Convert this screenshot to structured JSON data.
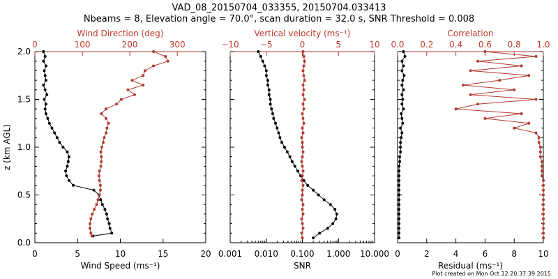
{
  "header": {
    "line1": "VAD_08_20150704_033355, 20150704.033413",
    "line2": "Nbeams = 8, Elevation angle = 70.0°, scan duration = 32.0 s, SNR Threshold = 0.008"
  },
  "footer": "Plot created on Mon Oct 12 20:37:39 2015",
  "colors": {
    "primary": "#000000",
    "secondary": "#b03a2e"
  },
  "chart_data": [
    {
      "type": "line",
      "panel": "wind",
      "ylabel": "z (km AGL)",
      "ylim": [
        0,
        2
      ],
      "yticks": [
        "0.0",
        "0.5",
        "1.0",
        "1.5",
        "2.0"
      ],
      "bottom_axis": {
        "label": "Wind Speed (ms⁻¹)",
        "lim": [
          0,
          20
        ],
        "ticks": [
          "0",
          "5",
          "10",
          "15",
          "20"
        ]
      },
      "top_axis": {
        "label": "Wind Direction (deg)",
        "lim": [
          0,
          360
        ],
        "ticks": [
          "0",
          "100",
          "200",
          "300"
        ]
      },
      "series": [
        {
          "name": "Wind Speed",
          "axis": "bottom",
          "color": "black",
          "z": [
            0.07,
            0.1,
            0.15,
            0.2,
            0.25,
            0.3,
            0.35,
            0.4,
            0.45,
            0.5,
            0.55,
            0.6,
            0.65,
            0.7,
            0.75,
            0.8,
            0.85,
            0.9,
            0.95,
            1.0,
            1.05,
            1.1,
            1.15,
            1.2,
            1.25,
            1.3,
            1.35,
            1.4,
            1.45,
            1.5,
            1.55,
            1.6,
            1.65,
            1.7,
            1.75,
            1.8,
            1.85,
            1.9,
            1.95,
            2.0
          ],
          "values": [
            6.8,
            9.0,
            8.8,
            8.7,
            8.5,
            8.4,
            8.2,
            7.9,
            7.7,
            7.5,
            6.9,
            4.5,
            4.0,
            3.7,
            3.6,
            3.8,
            3.9,
            4.0,
            3.8,
            3.3,
            2.9,
            2.6,
            2.3,
            2.0,
            1.7,
            1.5,
            1.3,
            1.2,
            1.3,
            1.1,
            1.4,
            1.2,
            1.0,
            1.3,
            1.2,
            1.1,
            1.3,
            1.0,
            1.2,
            1.0
          ]
        },
        {
          "name": "Wind Direction",
          "axis": "top",
          "color": "red",
          "z": [
            0.07,
            0.1,
            0.15,
            0.2,
            0.25,
            0.3,
            0.35,
            0.4,
            0.45,
            0.5,
            0.55,
            0.6,
            0.65,
            0.7,
            0.75,
            0.8,
            0.85,
            0.9,
            0.95,
            1.0,
            1.05,
            1.1,
            1.15,
            1.2,
            1.25,
            1.3,
            1.35,
            1.4,
            1.45,
            1.5,
            1.55,
            1.6,
            1.65,
            1.7,
            1.75,
            1.8,
            1.85,
            1.9,
            1.95,
            2.0
          ],
          "values": [
            120,
            118,
            116,
            116,
            118,
            121,
            125,
            130,
            133,
            136,
            138,
            138,
            136,
            135,
            136,
            139,
            140,
            140,
            139,
            141,
            144,
            146,
            150,
            152,
            155,
            150,
            140,
            150,
            172,
            182,
            210,
            196,
            228,
            205,
            228,
            232,
            250,
            280,
            275,
            250
          ]
        }
      ]
    },
    {
      "type": "line",
      "panel": "snr",
      "ylim": [
        0,
        2
      ],
      "bottom_axis": {
        "label": "SNR",
        "scale": "log",
        "lim": [
          0.001,
          10
        ],
        "ticks": [
          "0.001",
          "0.010",
          "0.100",
          "1.000",
          "10.000"
        ]
      },
      "top_axis": {
        "label": "Vertical velocity (ms⁻¹)",
        "lim": [
          -10,
          10
        ],
        "ticks": [
          "−10",
          "−5",
          "0",
          "5",
          "10"
        ]
      },
      "series": [
        {
          "name": "SNR",
          "axis": "bottom",
          "color": "black",
          "z": [
            0.05,
            0.1,
            0.15,
            0.2,
            0.25,
            0.3,
            0.35,
            0.4,
            0.45,
            0.5,
            0.55,
            0.6,
            0.65,
            0.7,
            0.75,
            0.8,
            0.85,
            0.9,
            0.95,
            1.0,
            1.05,
            1.1,
            1.15,
            1.2,
            1.25,
            1.3,
            1.35,
            1.4,
            1.45,
            1.5,
            1.55,
            1.6,
            1.65,
            1.7,
            1.75,
            1.8,
            1.85,
            1.9,
            1.95,
            2.0
          ],
          "values": [
            0.2,
            0.3,
            0.5,
            0.7,
            0.85,
            0.9,
            0.8,
            0.6,
            0.4,
            0.28,
            0.2,
            0.14,
            0.11,
            0.09,
            0.075,
            0.062,
            0.052,
            0.045,
            0.038,
            0.032,
            0.027,
            0.024,
            0.022,
            0.02,
            0.018,
            0.016,
            0.015,
            0.014,
            0.013,
            0.013,
            0.012,
            0.012,
            0.011,
            0.011,
            0.01,
            0.01,
            0.009,
            0.008,
            0.007,
            0.006
          ]
        },
        {
          "name": "Vertical velocity",
          "axis": "top",
          "color": "red",
          "z": [
            0.05,
            0.1,
            0.15,
            0.2,
            0.25,
            0.3,
            0.35,
            0.4,
            0.45,
            0.5,
            0.55,
            0.6,
            0.65,
            0.7,
            0.75,
            0.8,
            0.85,
            0.9,
            0.95,
            1.0,
            1.05,
            1.1,
            1.15,
            1.2,
            1.25,
            1.3,
            1.35,
            1.4,
            1.45,
            1.5,
            1.55,
            1.6,
            1.65,
            1.7,
            1.75,
            1.8,
            1.85,
            1.9,
            1.95,
            2.0
          ],
          "values": [
            0.0,
            -0.1,
            0.1,
            0.0,
            -0.1,
            0.1,
            0.0,
            0.1,
            -0.1,
            0.0,
            0.0,
            0.1,
            -0.1,
            0.0,
            0.1,
            0.0,
            -0.1,
            0.0,
            0.1,
            0.0,
            0.0,
            -0.1,
            0.1,
            0.0,
            0.2,
            0.1,
            0.0,
            0.2,
            0.1,
            0.3,
            0.1,
            0.2,
            0.1,
            0.3,
            0.2,
            0.1,
            0.2,
            0.3,
            0.2,
            0.1
          ]
        }
      ]
    },
    {
      "type": "line",
      "panel": "residual",
      "ylim": [
        0,
        2
      ],
      "bottom_axis": {
        "label": "Residual (ms⁻¹)",
        "lim": [
          0,
          10
        ],
        "ticks": [
          "0",
          "2",
          "4",
          "6",
          "8",
          "10"
        ]
      },
      "top_axis": {
        "label": "Correlation",
        "lim": [
          0,
          1
        ],
        "ticks": [
          "0.0",
          "0.2",
          "0.4",
          "0.6",
          "0.8",
          "1.0"
        ]
      },
      "series": [
        {
          "name": "Residual",
          "axis": "bottom",
          "color": "black",
          "z": [
            0.05,
            0.1,
            0.15,
            0.2,
            0.25,
            0.3,
            0.35,
            0.4,
            0.45,
            0.5,
            0.55,
            0.6,
            0.65,
            0.7,
            0.75,
            0.8,
            0.85,
            0.9,
            0.95,
            1.0,
            1.05,
            1.1,
            1.15,
            1.2,
            1.25,
            1.3,
            1.35,
            1.4,
            1.45,
            1.5,
            1.55,
            1.6,
            1.65,
            1.7,
            1.75,
            1.8,
            1.85,
            1.9,
            1.95,
            2.0
          ],
          "values": [
            0.1,
            0.1,
            0.1,
            0.1,
            0.1,
            0.1,
            0.1,
            0.1,
            0.1,
            0.1,
            0.1,
            0.1,
            0.1,
            0.1,
            0.1,
            0.1,
            0.15,
            0.15,
            0.2,
            0.2,
            0.2,
            0.25,
            0.3,
            0.2,
            0.35,
            0.3,
            0.25,
            0.4,
            0.3,
            0.35,
            0.3,
            0.4,
            0.3,
            0.35,
            0.45,
            0.3,
            0.4,
            0.3,
            0.5,
            0.4
          ]
        },
        {
          "name": "Correlation",
          "axis": "top",
          "color": "red",
          "z": [
            0.05,
            0.1,
            0.15,
            0.2,
            0.25,
            0.3,
            0.35,
            0.4,
            0.45,
            0.5,
            0.55,
            0.6,
            0.65,
            0.7,
            0.75,
            0.8,
            0.85,
            0.9,
            0.95,
            1.0,
            1.05,
            1.1,
            1.15,
            1.2,
            1.25,
            1.3,
            1.35,
            1.4,
            1.45,
            1.5,
            1.55,
            1.6,
            1.65,
            1.7,
            1.75,
            1.8,
            1.85,
            1.9,
            1.95,
            2.0
          ],
          "values": [
            1.0,
            1.0,
            1.0,
            1.0,
            1.0,
            1.0,
            1.0,
            1.0,
            1.0,
            1.0,
            1.0,
            1.0,
            1.0,
            0.99,
            0.99,
            0.99,
            0.99,
            0.98,
            0.98,
            0.98,
            0.97,
            0.97,
            0.95,
            0.8,
            0.9,
            0.6,
            0.85,
            0.4,
            0.55,
            0.95,
            0.5,
            0.8,
            0.45,
            0.7,
            0.9,
            0.5,
            0.85,
            0.55,
            0.95,
            0.6
          ]
        }
      ]
    }
  ]
}
